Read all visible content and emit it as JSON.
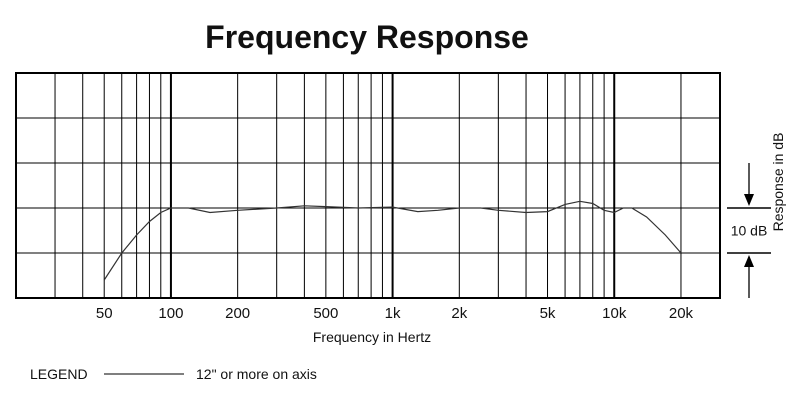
{
  "chart_data": {
    "type": "line",
    "title": "Frequency Response",
    "xlabel": "Frequency in Hertz",
    "ylabel": "Response in dB",
    "x_scale": "log",
    "xlim": [
      20,
      30000
    ],
    "ylim": [
      -20,
      30
    ],
    "grid": true,
    "x_tick_labels": [
      {
        "value": 50,
        "label": "50"
      },
      {
        "value": 100,
        "label": "100"
      },
      {
        "value": 200,
        "label": "200"
      },
      {
        "value": 500,
        "label": "500"
      },
      {
        "value": 1000,
        "label": "1k"
      },
      {
        "value": 2000,
        "label": "2k"
      },
      {
        "value": 5000,
        "label": "5k"
      },
      {
        "value": 10000,
        "label": "10k"
      },
      {
        "value": 20000,
        "label": "20k"
      }
    ],
    "y_gridlines": [
      -20,
      -10,
      0,
      10,
      20,
      30
    ],
    "scale_bar_label": "10 dB",
    "scale_bar_range": [
      -10,
      0
    ],
    "series": [
      {
        "name": "12\" or more on axis",
        "color": "#333333",
        "x": [
          50,
          60,
          70,
          80,
          90,
          100,
          120,
          150,
          200,
          300,
          400,
          500,
          700,
          1000,
          1300,
          1600,
          2000,
          2500,
          3000,
          4000,
          5000,
          6000,
          7000,
          8000,
          9000,
          10000,
          11000,
          12000,
          14000,
          17000,
          20000
        ],
        "y": [
          -16,
          -10,
          -6,
          -3,
          -1,
          0,
          0,
          -1,
          -0.5,
          0,
          0.5,
          0.3,
          0,
          0.2,
          -0.8,
          -0.5,
          0,
          0,
          -0.5,
          -1,
          -0.8,
          0.8,
          1.5,
          1,
          -0.5,
          -1,
          0,
          0,
          -2,
          -6,
          -10
        ]
      }
    ],
    "legend": {
      "title": "LEGEND",
      "placement": "bottom-left",
      "entries": [
        "12\" or more on axis"
      ]
    }
  }
}
